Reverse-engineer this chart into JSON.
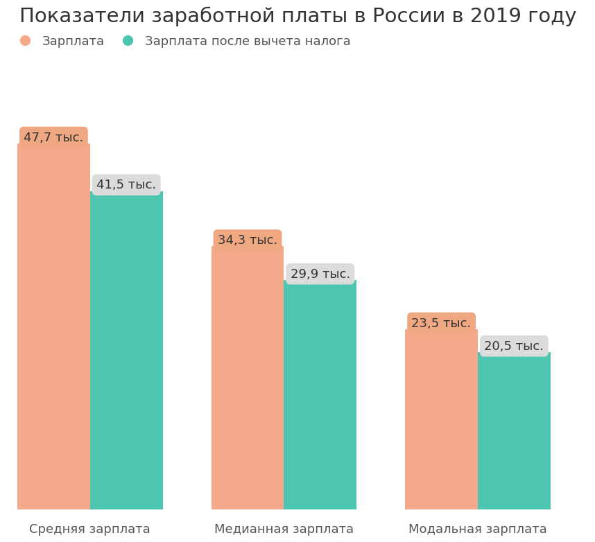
{
  "title": "Показатели заработной платы в России в 2019 году",
  "categories": [
    "Средняя зарплата",
    "Медианная зарплата",
    "Модальная зарплата"
  ],
  "values_salary": [
    47.7,
    34.3,
    23.5
  ],
  "values_after_tax": [
    41.5,
    29.9,
    20.5
  ],
  "labels_salary": [
    "47,7 тыс.",
    "34,3 тыс.",
    "23,5 тыс."
  ],
  "labels_after_tax": [
    "41,5 тыс.",
    "29,9 тыс.",
    "20,5 тыс."
  ],
  "color_salary": "#F4A98A",
  "color_after_tax": "#4EC5B0",
  "label_box_salary": "#F0A882",
  "label_box_after_tax": "#DCDCDC",
  "legend_salary": "Зарплата",
  "legend_after_tax": "Зарплата после вычета налога",
  "background_color": "#FFFFFF",
  "bar_width": 0.42,
  "ylim": [
    0,
    56
  ],
  "label_fontsize": 13,
  "title_fontsize": 21,
  "tick_fontsize": 13,
  "legend_fontsize": 13,
  "text_color": "#555555"
}
